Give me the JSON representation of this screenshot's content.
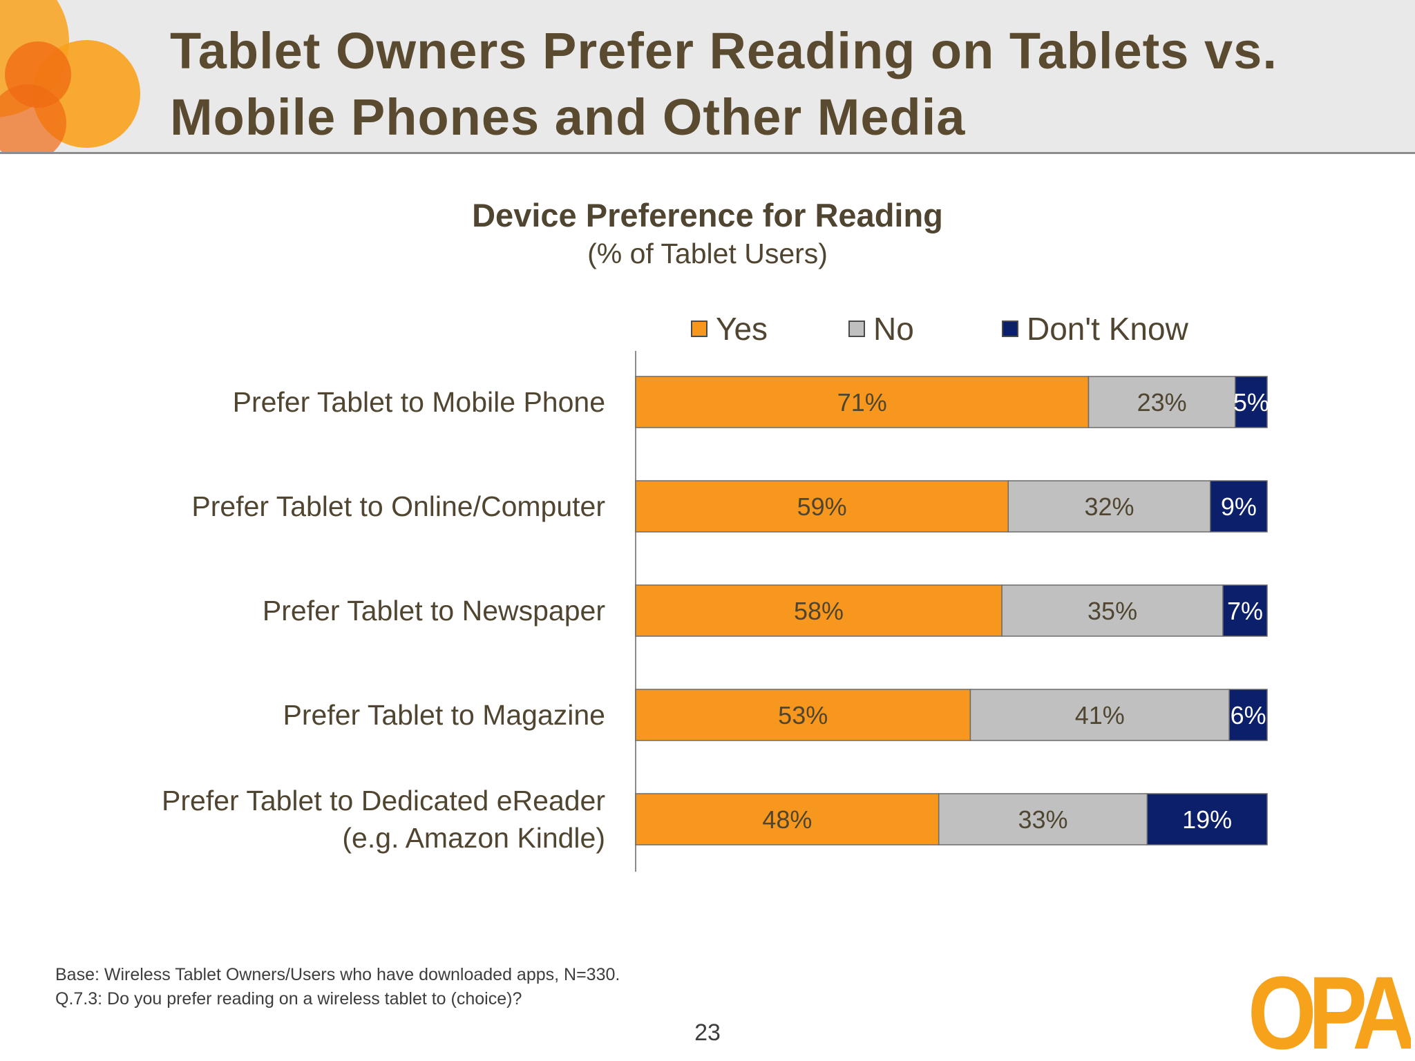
{
  "header": {
    "title_line1": "Tablet Owners Prefer Reading on Tablets vs.",
    "title_line2": "Mobile Phones and Other Media"
  },
  "chart_data": {
    "type": "bar",
    "orientation": "horizontal",
    "stacked": true,
    "title": "Device Preference for Reading",
    "subtitle": "(% of Tablet Users)",
    "categories": [
      [
        "Prefer Tablet to Mobile Phone"
      ],
      [
        "Prefer Tablet to Online/Computer"
      ],
      [
        "Prefer Tablet to Newspaper"
      ],
      [
        "Prefer Tablet to Magazine"
      ],
      [
        "Prefer Tablet to Dedicated eReader",
        "(e.g. Amazon Kindle)"
      ]
    ],
    "series": [
      {
        "name": "Yes",
        "color": "#f7971e",
        "label_color": "#4f4530",
        "values": [
          71,
          59,
          58,
          53,
          48
        ]
      },
      {
        "name": "No",
        "color": "#c0c0c0",
        "label_color": "#4f4530",
        "values": [
          23,
          32,
          35,
          41,
          33
        ]
      },
      {
        "name": "Don't Know",
        "color": "#0b1f6b",
        "label_color": "#ffffff",
        "values": [
          5,
          9,
          7,
          6,
          19
        ]
      }
    ],
    "value_suffix": "%",
    "legend_position": "top",
    "grid": false
  },
  "footnote": {
    "line1": "Base:  Wireless Tablet Owners/Users who have downloaded apps, N=330.",
    "line2": "Q.7.3:  Do you prefer reading on a wireless tablet to (choice)?"
  },
  "page_number": "23",
  "logo": {
    "text": "OPA",
    "color": "#f7a21b"
  }
}
